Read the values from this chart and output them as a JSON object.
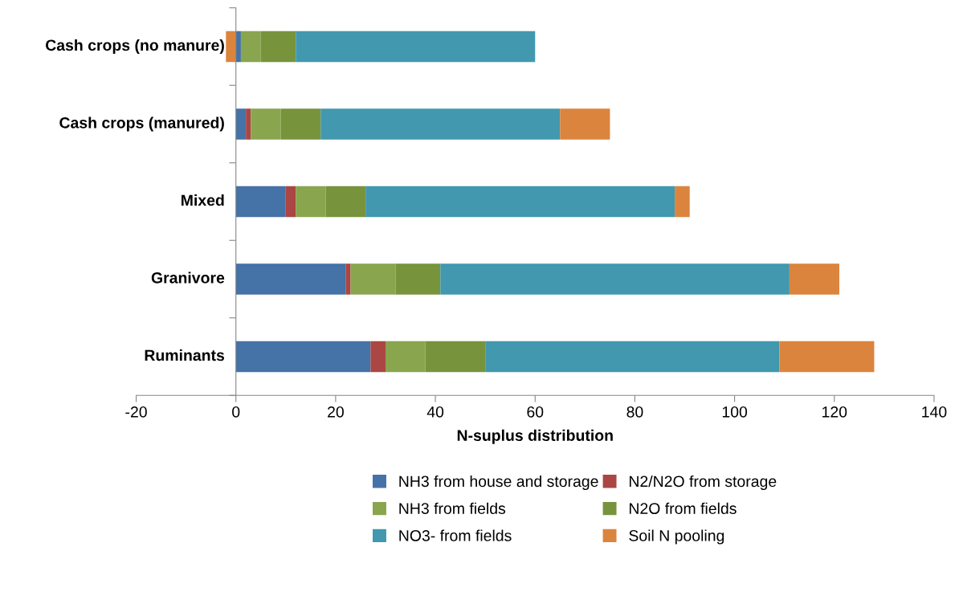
{
  "chart_data": {
    "type": "bar",
    "orientation": "horizontal",
    "stacked": true,
    "xlabel": "N-suplus distribution",
    "categories": [
      "Cash crops (no manure)",
      "Cash crops (manured)",
      "Mixed",
      "Granivore",
      "Ruminants"
    ],
    "series": [
      {
        "name": "NH3 from house and storage",
        "color": "#4572a7",
        "values": [
          1,
          2,
          10,
          22,
          27
        ]
      },
      {
        "name": "N2/N2O from storage",
        "color": "#aa4643",
        "values": [
          0,
          1,
          2,
          1,
          3
        ]
      },
      {
        "name": "NH3 from fields",
        "color": "#89a54e",
        "values": [
          4,
          6,
          6,
          9,
          8
        ]
      },
      {
        "name": "N2O from fields",
        "color": "#77933c",
        "values": [
          7,
          8,
          8,
          9,
          12
        ]
      },
      {
        "name": "NO3- from fields",
        "color": "#4198af",
        "values": [
          48,
          48,
          62,
          70,
          59
        ]
      },
      {
        "name": "Soil N pooling",
        "color": "#db843d",
        "values": [
          -2,
          10,
          3,
          10,
          19
        ]
      }
    ],
    "xlim": [
      -20,
      140
    ],
    "xticks": [
      -20,
      0,
      20,
      40,
      60,
      80,
      100,
      120,
      140
    ],
    "grid": false,
    "legend": "bottom"
  }
}
